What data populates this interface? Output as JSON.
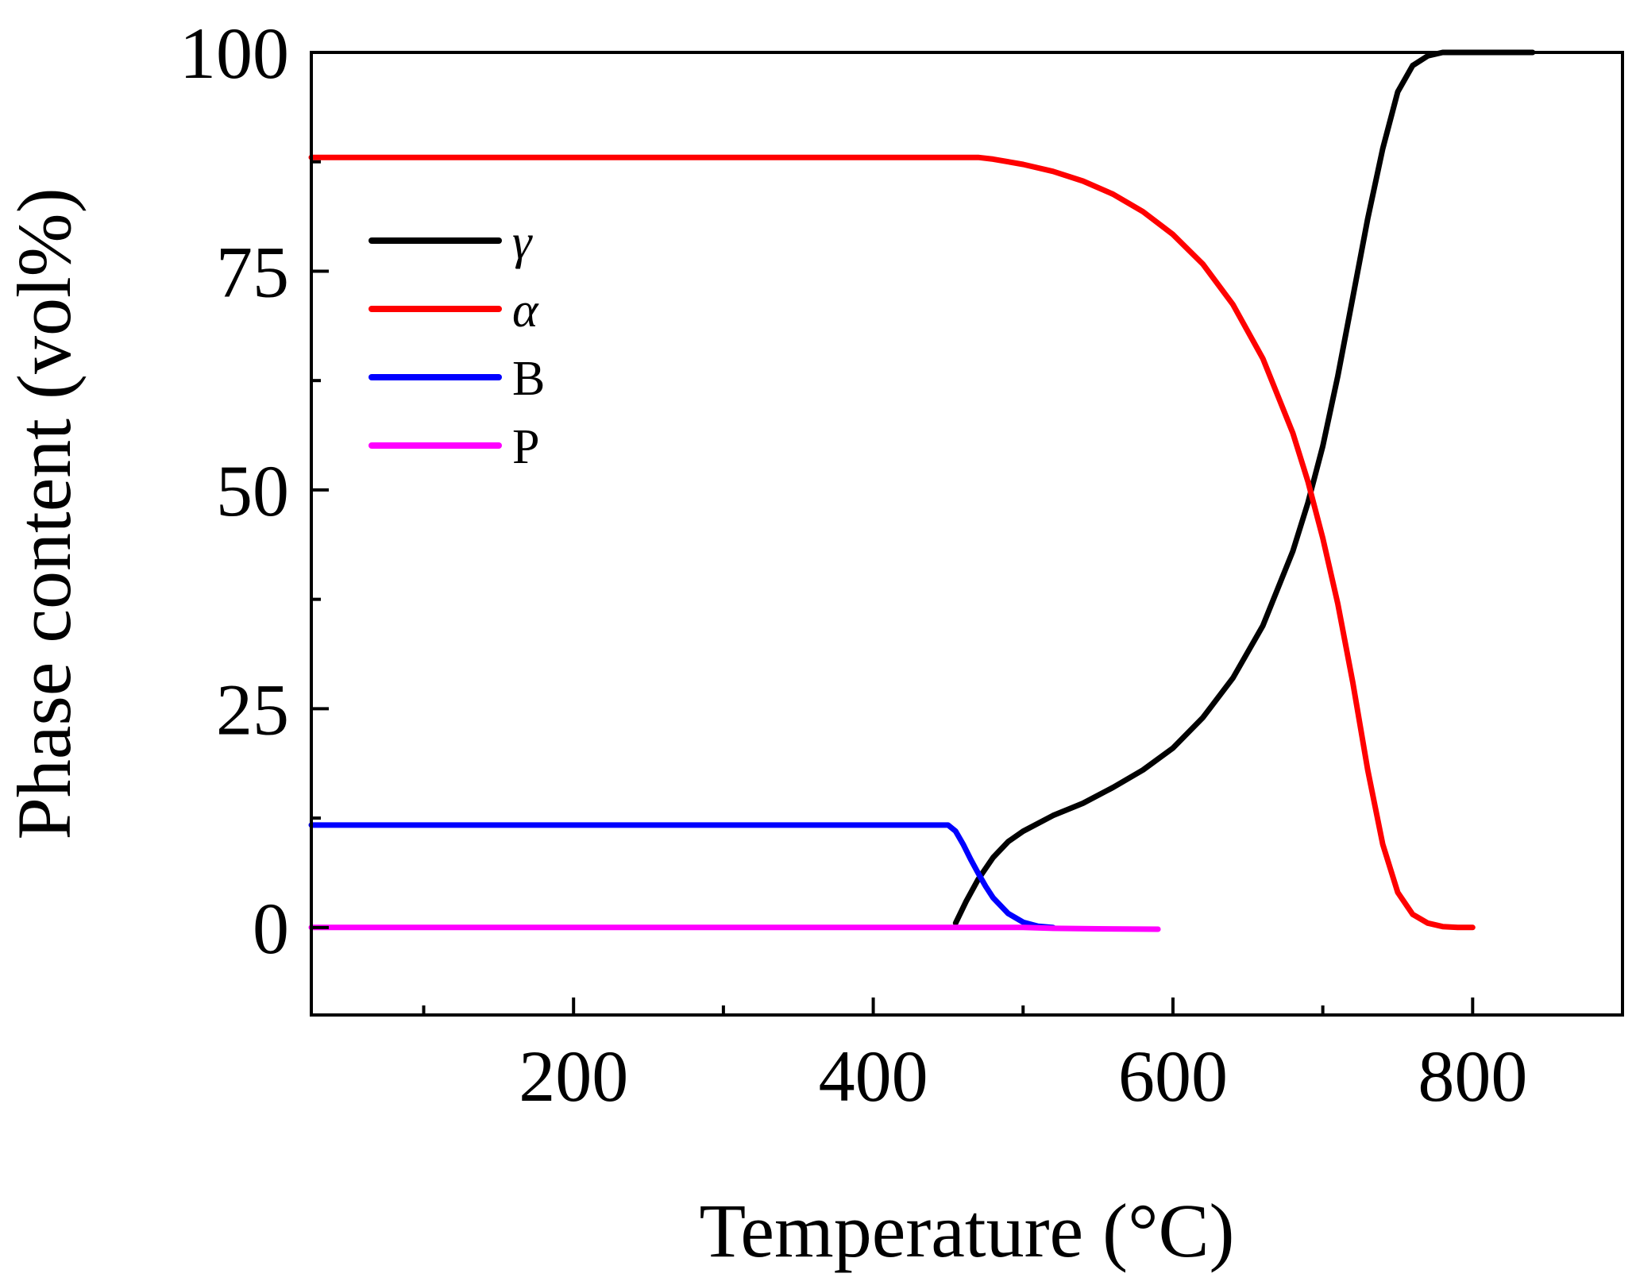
{
  "chart_data": {
    "type": "line",
    "title": "",
    "xlabel": "Temperature (°C)",
    "ylabel": "Phase content (vol%)",
    "xlim": [
      25,
      900
    ],
    "ylim": [
      -10,
      100
    ],
    "x_major_ticks": [
      200,
      400,
      600,
      800
    ],
    "x_tick_labels": [
      "200",
      "400",
      "600",
      "800"
    ],
    "x_minor_ticks": [
      100,
      300,
      500,
      700
    ],
    "y_major_ticks": [
      0,
      25,
      50,
      75,
      100
    ],
    "y_tick_labels": [
      "0",
      "25",
      "50",
      "75",
      "100"
    ],
    "y_minor_ticks": [
      12.5,
      37.5,
      62.5,
      87.5
    ],
    "grid": false,
    "legend_position": "top-left",
    "series": [
      {
        "name": "γ",
        "color": "#000000",
        "x": [
          455,
          462,
          470,
          480,
          490,
          500,
          520,
          540,
          560,
          580,
          600,
          620,
          640,
          660,
          680,
          690,
          700,
          710,
          720,
          730,
          740,
          750,
          760,
          770,
          780,
          800,
          820,
          840
        ],
        "y": [
          0.5,
          3,
          5.5,
          8,
          9.8,
          11,
          12.8,
          14.2,
          16,
          18,
          20.5,
          24,
          28.5,
          34.5,
          43,
          48.5,
          55,
          63,
          72,
          81,
          89,
          95.5,
          98.5,
          99.6,
          100,
          100,
          100,
          100
        ]
      },
      {
        "name": "α",
        "color": "#ff0000",
        "x": [
          25,
          100,
          200,
          300,
          400,
          450,
          470,
          480,
          500,
          520,
          540,
          560,
          580,
          600,
          620,
          640,
          660,
          680,
          690,
          700,
          710,
          720,
          730,
          740,
          750,
          760,
          770,
          780,
          790,
          800
        ],
        "y": [
          88,
          88,
          88,
          88,
          88,
          88,
          88,
          87.8,
          87.2,
          86.4,
          85.3,
          83.8,
          81.8,
          79.2,
          75.8,
          71.2,
          65,
          56.5,
          51,
          44.5,
          37,
          28,
          18,
          9.5,
          4,
          1.5,
          0.5,
          0.1,
          0,
          0
        ]
      },
      {
        "name": "B",
        "color": "#0000ff",
        "x": [
          25,
          100,
          200,
          300,
          400,
          450,
          455,
          460,
          465,
          470,
          475,
          480,
          490,
          500,
          510,
          520
        ],
        "y": [
          11.7,
          11.7,
          11.7,
          11.7,
          11.7,
          11.7,
          11,
          9.5,
          7.8,
          6.2,
          4.7,
          3.4,
          1.6,
          0.6,
          0.15,
          0
        ]
      },
      {
        "name": "P",
        "color": "#ff00ff",
        "x": [
          25,
          100,
          200,
          300,
          400,
          500,
          520,
          550,
          590
        ],
        "y": [
          0,
          0,
          0,
          0,
          0,
          0,
          -0.1,
          -0.15,
          -0.2
        ]
      }
    ]
  }
}
